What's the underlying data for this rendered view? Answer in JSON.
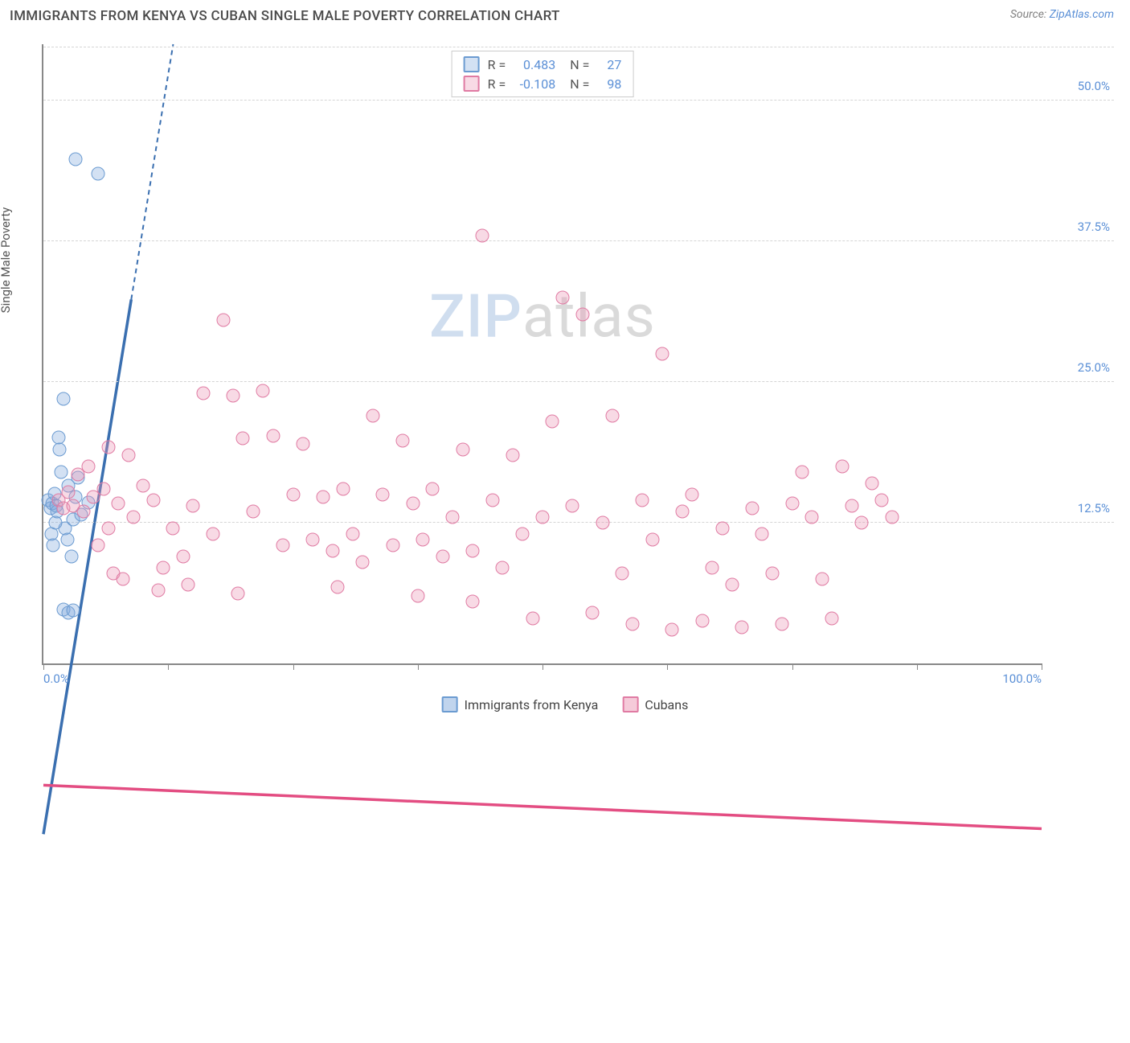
{
  "title": "IMMIGRANTS FROM KENYA VS CUBAN SINGLE MALE POVERTY CORRELATION CHART",
  "source_prefix": "Source: ",
  "source_link": "ZipAtlas.com",
  "y_axis_label": "Single Male Poverty",
  "watermark": {
    "part1": "ZIP",
    "part2": "atlas"
  },
  "chart": {
    "type": "scatter",
    "xlim": [
      0,
      100
    ],
    "ylim": [
      0,
      55
    ],
    "x_ticks": [
      0,
      12.5,
      25,
      37.5,
      50,
      62.5,
      75,
      87.5,
      100
    ],
    "x_tick_labels": {
      "0": "0.0%",
      "100": "100.0%"
    },
    "y_gridlines": [
      12.5,
      25,
      37.5,
      50
    ],
    "y_tick_labels": {
      "12.5": "12.5%",
      "25": "25.0%",
      "37.5": "37.5%",
      "50": "50.0%"
    },
    "background_color": "#ffffff",
    "grid_color": "#d5d5d5",
    "axis_color": "#888888",
    "marker_size": 17,
    "series": [
      {
        "name": "Immigrants from Kenya",
        "fill": "rgba(130,170,220,0.35)",
        "stroke": "#6b9bd1",
        "line_color": "#3a6fb0",
        "R_label": "R =",
        "R": "0.483",
        "N_label": "N =",
        "N": "27",
        "trend": {
          "x1": 0,
          "y1": 11.5,
          "x2": 13,
          "y2": 55,
          "dashed_from_x": 8.8
        },
        "points": [
          [
            0.5,
            14.5
          ],
          [
            0.7,
            13.8
          ],
          [
            0.9,
            14.2
          ],
          [
            1.1,
            15.1
          ],
          [
            1.3,
            14.0
          ],
          [
            1.5,
            20.1
          ],
          [
            1.6,
            19.0
          ],
          [
            1.8,
            17.0
          ],
          [
            2.0,
            23.5
          ],
          [
            2.2,
            12.0
          ],
          [
            2.4,
            11.0
          ],
          [
            2.5,
            15.8
          ],
          [
            2.8,
            9.5
          ],
          [
            3.0,
            12.8
          ],
          [
            3.2,
            14.8
          ],
          [
            3.5,
            16.5
          ],
          [
            3.8,
            13.2
          ],
          [
            4.5,
            14.3
          ],
          [
            2.0,
            4.8
          ],
          [
            2.5,
            4.5
          ],
          [
            3.0,
            4.7
          ],
          [
            3.2,
            44.8
          ],
          [
            5.5,
            43.5
          ],
          [
            0.8,
            11.5
          ],
          [
            1.0,
            10.5
          ],
          [
            1.2,
            12.5
          ],
          [
            1.4,
            13.5
          ]
        ]
      },
      {
        "name": "Cubans",
        "fill": "rgba(235,150,180,0.35)",
        "stroke": "#e07ba3",
        "line_color": "#e34d82",
        "R_label": "R =",
        "R": "-0.108",
        "N_label": "N =",
        "N": "98",
        "trend": {
          "x1": 0,
          "y1": 14.2,
          "x2": 100,
          "y2": 11.8
        },
        "points": [
          [
            1.5,
            14.5
          ],
          [
            2.0,
            13.8
          ],
          [
            2.5,
            15.2
          ],
          [
            3.0,
            14.0
          ],
          [
            3.5,
            16.8
          ],
          [
            4.0,
            13.5
          ],
          [
            4.5,
            17.5
          ],
          [
            5.0,
            14.8
          ],
          [
            5.5,
            10.5
          ],
          [
            6.0,
            15.5
          ],
          [
            6.5,
            12.0
          ],
          [
            7.0,
            8.0
          ],
          [
            7.5,
            14.2
          ],
          [
            8.0,
            7.5
          ],
          [
            9.0,
            13.0
          ],
          [
            10.0,
            15.8
          ],
          [
            11.0,
            14.5
          ],
          [
            12.0,
            8.5
          ],
          [
            13.0,
            12.0
          ],
          [
            14.0,
            9.5
          ],
          [
            15.0,
            14.0
          ],
          [
            16.0,
            24.0
          ],
          [
            17.0,
            11.5
          ],
          [
            18.0,
            30.5
          ],
          [
            19.0,
            23.8
          ],
          [
            20.0,
            20.0
          ],
          [
            21.0,
            13.5
          ],
          [
            22.0,
            24.2
          ],
          [
            23.0,
            20.2
          ],
          [
            24.0,
            10.5
          ],
          [
            25.0,
            15.0
          ],
          [
            26.0,
            19.5
          ],
          [
            27.0,
            11.0
          ],
          [
            28.0,
            14.8
          ],
          [
            29.0,
            10.0
          ],
          [
            30.0,
            15.5
          ],
          [
            31.0,
            11.5
          ],
          [
            32.0,
            9.0
          ],
          [
            33.0,
            22.0
          ],
          [
            34.0,
            15.0
          ],
          [
            35.0,
            10.5
          ],
          [
            36.0,
            19.8
          ],
          [
            37.0,
            14.2
          ],
          [
            38.0,
            11.0
          ],
          [
            39.0,
            15.5
          ],
          [
            40.0,
            9.5
          ],
          [
            41.0,
            13.0
          ],
          [
            42.0,
            19.0
          ],
          [
            43.0,
            10.0
          ],
          [
            44.0,
            38.0
          ],
          [
            45.0,
            14.5
          ],
          [
            46.0,
            8.5
          ],
          [
            47.0,
            18.5
          ],
          [
            48.0,
            11.5
          ],
          [
            49.0,
            4.0
          ],
          [
            50.0,
            13.0
          ],
          [
            51.0,
            21.5
          ],
          [
            52.0,
            32.5
          ],
          [
            53.0,
            14.0
          ],
          [
            54.0,
            31.0
          ],
          [
            55.0,
            4.5
          ],
          [
            56.0,
            12.5
          ],
          [
            57.0,
            22.0
          ],
          [
            58.0,
            8.0
          ],
          [
            59.0,
            3.5
          ],
          [
            60.0,
            14.5
          ],
          [
            61.0,
            11.0
          ],
          [
            62.0,
            27.5
          ],
          [
            63.0,
            3.0
          ],
          [
            64.0,
            13.5
          ],
          [
            65.0,
            15.0
          ],
          [
            66.0,
            3.8
          ],
          [
            67.0,
            8.5
          ],
          [
            68.0,
            12.0
          ],
          [
            69.0,
            7.0
          ],
          [
            70.0,
            3.2
          ],
          [
            71.0,
            13.8
          ],
          [
            72.0,
            11.5
          ],
          [
            73.0,
            8.0
          ],
          [
            74.0,
            3.5
          ],
          [
            75.0,
            14.2
          ],
          [
            76.0,
            17.0
          ],
          [
            77.0,
            13.0
          ],
          [
            78.0,
            7.5
          ],
          [
            79.0,
            4.0
          ],
          [
            80.0,
            17.5
          ],
          [
            81.0,
            14.0
          ],
          [
            82.0,
            12.5
          ],
          [
            83.0,
            16.0
          ],
          [
            84.0,
            14.5
          ],
          [
            85.0,
            13.0
          ],
          [
            11.5,
            6.5
          ],
          [
            14.5,
            7.0
          ],
          [
            37.5,
            6.0
          ],
          [
            43.0,
            5.5
          ],
          [
            29.5,
            6.8
          ],
          [
            19.5,
            6.2
          ],
          [
            8.5,
            18.5
          ],
          [
            6.5,
            19.2
          ]
        ]
      }
    ]
  },
  "legend": [
    {
      "label": "Immigrants from Kenya",
      "fill": "rgba(130,170,220,0.5)",
      "stroke": "#6b9bd1"
    },
    {
      "label": "Cubans",
      "fill": "rgba(235,150,180,0.5)",
      "stroke": "#e07ba3"
    }
  ]
}
